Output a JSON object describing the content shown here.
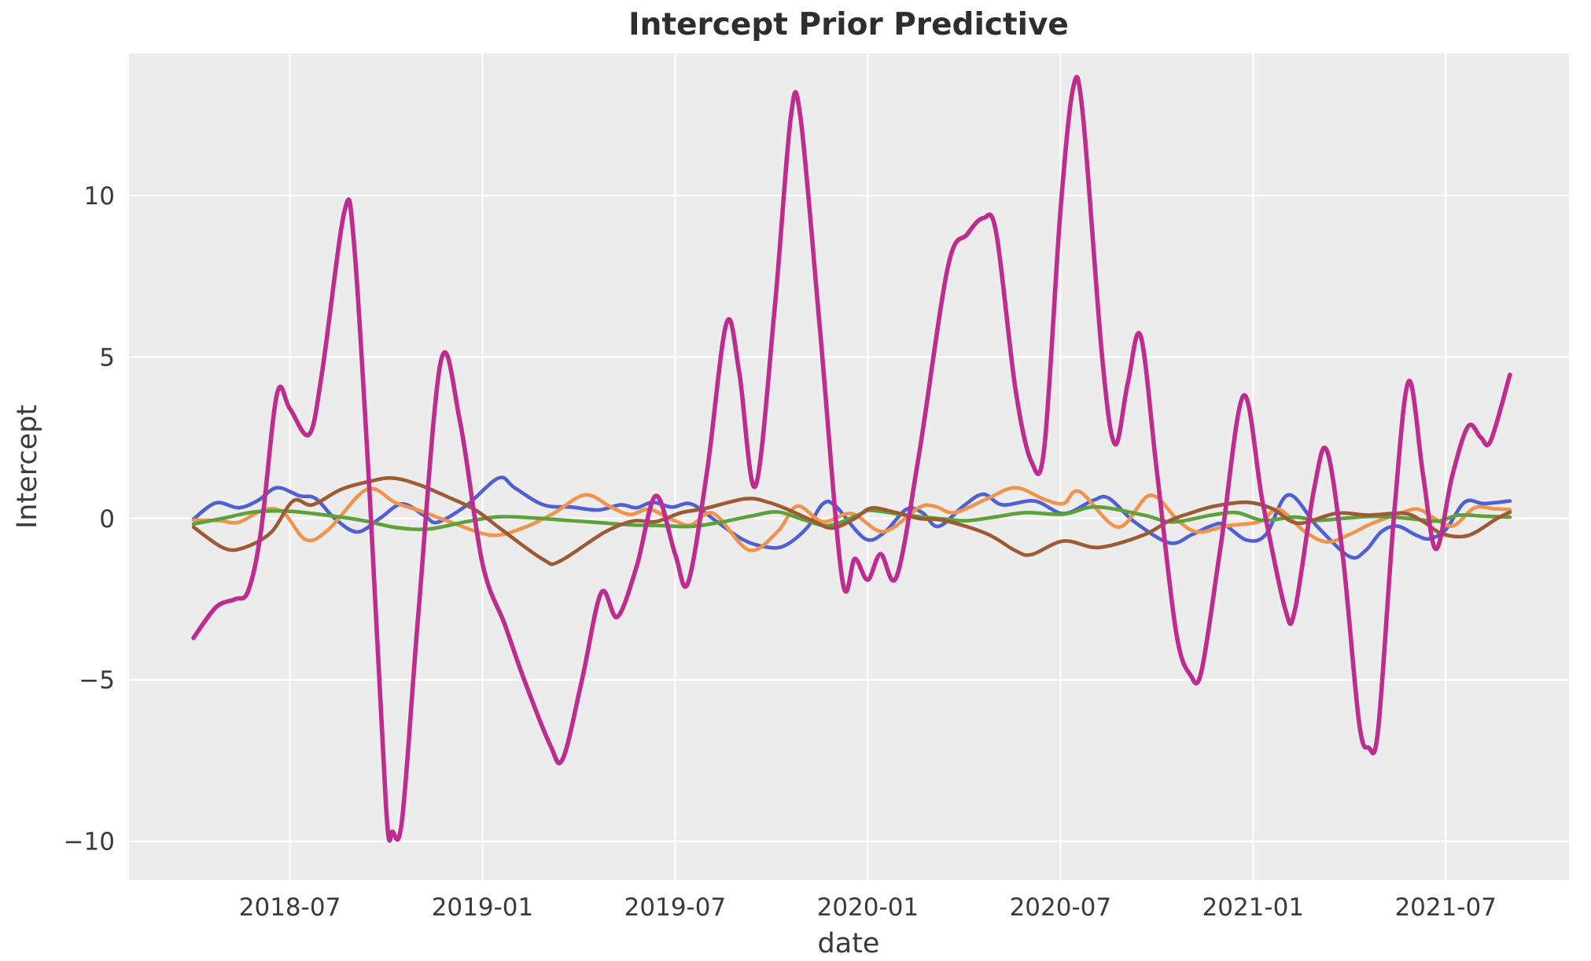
{
  "chart_data": {
    "type": "line",
    "title": "Intercept Prior Predictive",
    "xlabel": "date",
    "ylabel": "Intercept",
    "grid": true,
    "legend": "none",
    "plot_background": "#ececec",
    "gridline_color": "#ffffff",
    "text_color": "#3a3a3a",
    "title_color": "#2e2e2e",
    "x_axis": {
      "start_month": "2018-04",
      "end_month": "2021-09",
      "unit": "month-index from 2018-04",
      "ticks": [
        {
          "t": 3,
          "label": "2018-07"
        },
        {
          "t": 9,
          "label": "2019-01"
        },
        {
          "t": 15,
          "label": "2019-07"
        },
        {
          "t": 21,
          "label": "2020-01"
        },
        {
          "t": 27,
          "label": "2020-07"
        },
        {
          "t": 33,
          "label": "2021-01"
        },
        {
          "t": 39,
          "label": "2021-07"
        }
      ],
      "tlim": [
        -2.01,
        42.84
      ]
    },
    "y_axis": {
      "ticks": [
        {
          "v": -10,
          "label": "−10"
        },
        {
          "v": -5,
          "label": "−5"
        },
        {
          "v": 0,
          "label": "0"
        },
        {
          "v": 5,
          "label": "5"
        },
        {
          "v": 10,
          "label": "10"
        }
      ],
      "vlim": [
        -11.2,
        14.4
      ]
    },
    "series": [
      {
        "name": "prior-draw-blue",
        "color": "#4e60d2",
        "width": 4.6,
        "points": [
          [
            0,
            -0.02
          ],
          [
            0.7,
            0.48
          ],
          [
            1.4,
            0.33
          ],
          [
            2.0,
            0.55
          ],
          [
            2.6,
            0.95
          ],
          [
            3.3,
            0.7
          ],
          [
            3.8,
            0.62
          ],
          [
            4.4,
            0.0
          ],
          [
            5.1,
            -0.42
          ],
          [
            5.8,
            0.0
          ],
          [
            6.5,
            0.45
          ],
          [
            7.2,
            0.08
          ],
          [
            7.6,
            -0.12
          ],
          [
            8.5,
            0.4
          ],
          [
            9.5,
            1.25
          ],
          [
            10.0,
            0.95
          ],
          [
            10.9,
            0.42
          ],
          [
            11.8,
            0.35
          ],
          [
            12.6,
            0.26
          ],
          [
            13.3,
            0.42
          ],
          [
            13.8,
            0.33
          ],
          [
            14.3,
            0.5
          ],
          [
            14.9,
            0.35
          ],
          [
            15.5,
            0.45
          ],
          [
            16.3,
            -0.1
          ],
          [
            17.1,
            -0.65
          ],
          [
            17.8,
            -0.88
          ],
          [
            18.4,
            -0.85
          ],
          [
            19.1,
            -0.3
          ],
          [
            19.6,
            0.45
          ],
          [
            20.0,
            0.38
          ],
          [
            20.9,
            -0.62
          ],
          [
            21.5,
            -0.45
          ],
          [
            22.2,
            0.28
          ],
          [
            22.7,
            0.18
          ],
          [
            23.2,
            -0.25
          ],
          [
            24.0,
            0.4
          ],
          [
            24.6,
            0.75
          ],
          [
            25.2,
            0.42
          ],
          [
            26.2,
            0.54
          ],
          [
            27.1,
            0.15
          ],
          [
            28.0,
            0.55
          ],
          [
            28.5,
            0.63
          ],
          [
            29.3,
            -0.1
          ],
          [
            30.4,
            -0.76
          ],
          [
            31.1,
            -0.5
          ],
          [
            31.7,
            -0.23
          ],
          [
            32.1,
            -0.19
          ],
          [
            32.8,
            -0.67
          ],
          [
            33.4,
            -0.5
          ],
          [
            34.1,
            0.73
          ],
          [
            35.0,
            -0.25
          ],
          [
            36.0,
            -1.18
          ],
          [
            36.5,
            -1.0
          ],
          [
            37.0,
            -0.41
          ],
          [
            37.5,
            -0.24
          ],
          [
            38.1,
            -0.53
          ],
          [
            38.5,
            -0.63
          ],
          [
            39.0,
            -0.35
          ],
          [
            39.6,
            0.51
          ],
          [
            40.2,
            0.46
          ],
          [
            41,
            0.54
          ]
        ]
      },
      {
        "name": "prior-draw-orange",
        "color": "#f0944d",
        "width": 4.6,
        "points": [
          [
            0,
            -0.05
          ],
          [
            0.8,
            -0.07
          ],
          [
            1.4,
            -0.12
          ],
          [
            2.2,
            0.27
          ],
          [
            2.8,
            0.18
          ],
          [
            3.5,
            -0.66
          ],
          [
            4.2,
            -0.35
          ],
          [
            5.4,
            0.9
          ],
          [
            6.3,
            0.48
          ],
          [
            7.1,
            0.22
          ],
          [
            8.1,
            -0.15
          ],
          [
            9.3,
            -0.52
          ],
          [
            10.3,
            -0.28
          ],
          [
            11.2,
            0.15
          ],
          [
            12.2,
            0.73
          ],
          [
            13.0,
            0.35
          ],
          [
            13.6,
            0.12
          ],
          [
            14.2,
            0.28
          ],
          [
            15.0,
            -0.08
          ],
          [
            15.5,
            -0.2
          ],
          [
            16.2,
            0.15
          ],
          [
            17.3,
            -0.98
          ],
          [
            18.2,
            -0.4
          ],
          [
            18.8,
            0.38
          ],
          [
            19.6,
            -0.1
          ],
          [
            20.5,
            0.15
          ],
          [
            21.5,
            -0.41
          ],
          [
            22.6,
            0.34
          ],
          [
            23.1,
            0.37
          ],
          [
            23.7,
            0.18
          ],
          [
            24.7,
            0.6
          ],
          [
            25.6,
            0.95
          ],
          [
            26.5,
            0.59
          ],
          [
            27.1,
            0.46
          ],
          [
            27.6,
            0.83
          ],
          [
            28.8,
            -0.27
          ],
          [
            29.8,
            0.72
          ],
          [
            30.7,
            -0.1
          ],
          [
            31.3,
            -0.42
          ],
          [
            32.2,
            -0.23
          ],
          [
            33.2,
            -0.1
          ],
          [
            33.8,
            0.28
          ],
          [
            34.6,
            -0.4
          ],
          [
            35.3,
            -0.73
          ],
          [
            36.0,
            -0.5
          ],
          [
            36.7,
            -0.16
          ],
          [
            37.7,
            0.2
          ],
          [
            38.2,
            0.27
          ],
          [
            38.9,
            -0.15
          ],
          [
            39.3,
            -0.2
          ],
          [
            39.9,
            0.33
          ],
          [
            40.5,
            0.3
          ],
          [
            41,
            0.27
          ]
        ]
      },
      {
        "name": "prior-draw-green",
        "color": "#5da13a",
        "width": 4.6,
        "points": [
          [
            0,
            -0.17
          ],
          [
            0.9,
            0.0
          ],
          [
            1.9,
            0.2
          ],
          [
            3.0,
            0.22
          ],
          [
            4.3,
            0.08
          ],
          [
            5.3,
            -0.07
          ],
          [
            6.3,
            -0.28
          ],
          [
            7.3,
            -0.33
          ],
          [
            8.5,
            -0.1
          ],
          [
            9.5,
            0.05
          ],
          [
            10.5,
            0.02
          ],
          [
            11.5,
            -0.05
          ],
          [
            12.5,
            -0.12
          ],
          [
            13.6,
            -0.2
          ],
          [
            14.5,
            -0.22
          ],
          [
            15.5,
            -0.25
          ],
          [
            16.5,
            -0.1
          ],
          [
            17.4,
            0.08
          ],
          [
            18.2,
            0.2
          ],
          [
            19.0,
            -0.04
          ],
          [
            19.8,
            -0.22
          ],
          [
            20.8,
            0.15
          ],
          [
            21.1,
            0.25
          ],
          [
            22.2,
            0.1
          ],
          [
            23.4,
            -0.02
          ],
          [
            24.1,
            -0.07
          ],
          [
            25.0,
            0.05
          ],
          [
            25.9,
            0.18
          ],
          [
            27.1,
            0.13
          ],
          [
            28.1,
            0.36
          ],
          [
            29.6,
            0.1
          ],
          [
            30.5,
            -0.11
          ],
          [
            31.7,
            0.1
          ],
          [
            32.5,
            0.18
          ],
          [
            33.3,
            -0.06
          ],
          [
            34.3,
            0.04
          ],
          [
            35.0,
            -0.06
          ],
          [
            35.8,
            0.0
          ],
          [
            36.6,
            0.06
          ],
          [
            37.4,
            0.04
          ],
          [
            38.2,
            -0.04
          ],
          [
            38.8,
            -0.08
          ],
          [
            39.4,
            0.1
          ],
          [
            40.2,
            0.07
          ],
          [
            41,
            0.04
          ]
        ]
      },
      {
        "name": "prior-draw-brown",
        "color": "#9c5b33",
        "width": 4.6,
        "points": [
          [
            0,
            -0.27
          ],
          [
            0.9,
            -0.9
          ],
          [
            1.5,
            -0.93
          ],
          [
            2.4,
            -0.45
          ],
          [
            3.1,
            0.54
          ],
          [
            3.7,
            0.42
          ],
          [
            4.6,
            0.9
          ],
          [
            5.5,
            1.15
          ],
          [
            6.2,
            1.25
          ],
          [
            7.0,
            1.05
          ],
          [
            8.0,
            0.63
          ],
          [
            8.8,
            0.25
          ],
          [
            9.6,
            -0.35
          ],
          [
            10.9,
            -1.28
          ],
          [
            11.4,
            -1.33
          ],
          [
            12.8,
            -0.43
          ],
          [
            13.7,
            -0.08
          ],
          [
            14.4,
            -0.1
          ],
          [
            15.2,
            0.18
          ],
          [
            15.9,
            0.3
          ],
          [
            17.2,
            0.61
          ],
          [
            17.9,
            0.5
          ],
          [
            18.5,
            0.28
          ],
          [
            19.3,
            -0.08
          ],
          [
            19.9,
            -0.3
          ],
          [
            20.6,
            0.0
          ],
          [
            21.1,
            0.32
          ],
          [
            21.8,
            0.2
          ],
          [
            22.6,
            0.0
          ],
          [
            23.4,
            -0.07
          ],
          [
            24.7,
            -0.47
          ],
          [
            25.6,
            -1.0
          ],
          [
            26.1,
            -1.12
          ],
          [
            27.1,
            -0.7
          ],
          [
            28.2,
            -0.9
          ],
          [
            29.6,
            -0.51
          ],
          [
            30.4,
            -0.07
          ],
          [
            31.1,
            0.18
          ],
          [
            31.8,
            0.38
          ],
          [
            32.8,
            0.5
          ],
          [
            33.6,
            0.3
          ],
          [
            34.4,
            -0.15
          ],
          [
            35.6,
            0.16
          ],
          [
            36.6,
            0.1
          ],
          [
            37.7,
            0.16
          ],
          [
            38.3,
            -0.1
          ],
          [
            38.9,
            -0.48
          ],
          [
            39.7,
            -0.53
          ],
          [
            40.6,
            0.0
          ],
          [
            41,
            0.19
          ]
        ]
      },
      {
        "name": "prior-draw-magenta",
        "color": "#bf2c90",
        "width": 5.6,
        "points": [
          [
            0,
            -3.7
          ],
          [
            0.7,
            -2.75
          ],
          [
            1.3,
            -2.5
          ],
          [
            1.7,
            -2.25
          ],
          [
            2.1,
            -0.4
          ],
          [
            2.6,
            3.85
          ],
          [
            3.0,
            3.4
          ],
          [
            3.6,
            2.6
          ],
          [
            4.0,
            4.5
          ],
          [
            4.7,
            9.5
          ],
          [
            5.0,
            8.5
          ],
          [
            5.5,
            0.5
          ],
          [
            6.0,
            -9.0
          ],
          [
            6.2,
            -9.7
          ],
          [
            6.5,
            -9.3
          ],
          [
            7.0,
            -3.0
          ],
          [
            7.7,
            4.85
          ],
          [
            8.3,
            3.0
          ],
          [
            9.0,
            -1.4
          ],
          [
            9.7,
            -3.3
          ],
          [
            10.3,
            -5.0
          ],
          [
            11.1,
            -7.0
          ],
          [
            11.5,
            -7.45
          ],
          [
            12.1,
            -5.0
          ],
          [
            12.7,
            -2.3
          ],
          [
            13.2,
            -3.05
          ],
          [
            13.8,
            -1.5
          ],
          [
            14.4,
            0.7
          ],
          [
            15.0,
            -1.1
          ],
          [
            15.4,
            -2.0
          ],
          [
            16.0,
            1.5
          ],
          [
            16.6,
            6.05
          ],
          [
            17.0,
            4.5
          ],
          [
            17.5,
            1.0
          ],
          [
            18.1,
            6.5
          ],
          [
            18.6,
            12.4
          ],
          [
            18.9,
            12.45
          ],
          [
            19.5,
            6.0
          ],
          [
            20.2,
            -1.85
          ],
          [
            20.6,
            -1.25
          ],
          [
            21.0,
            -1.9
          ],
          [
            21.4,
            -1.1
          ],
          [
            21.9,
            -1.8
          ],
          [
            22.6,
            2.0
          ],
          [
            23.5,
            7.8
          ],
          [
            24.1,
            8.8
          ],
          [
            24.6,
            9.3
          ],
          [
            25.0,
            8.85
          ],
          [
            25.6,
            4.0
          ],
          [
            26.1,
            1.75
          ],
          [
            26.5,
            2.2
          ],
          [
            27.0,
            9.5
          ],
          [
            27.4,
            13.35
          ],
          [
            27.7,
            12.5
          ],
          [
            28.3,
            5.0
          ],
          [
            28.7,
            2.3
          ],
          [
            29.1,
            4.2
          ],
          [
            29.5,
            5.65
          ],
          [
            30.0,
            1.5
          ],
          [
            30.6,
            -3.5
          ],
          [
            31.05,
            -4.85
          ],
          [
            31.4,
            -4.7
          ],
          [
            32.0,
            -0.8
          ],
          [
            32.7,
            3.8
          ],
          [
            33.3,
            0.5
          ],
          [
            34.0,
            -2.8
          ],
          [
            34.3,
            -2.85
          ],
          [
            34.9,
            0.9
          ],
          [
            35.3,
            2.1
          ],
          [
            35.8,
            -1.2
          ],
          [
            36.3,
            -6.3
          ],
          [
            36.6,
            -7.1
          ],
          [
            36.9,
            -6.5
          ],
          [
            37.4,
            0.2
          ],
          [
            37.85,
            4.25
          ],
          [
            38.3,
            1.3
          ],
          [
            38.7,
            -0.95
          ],
          [
            39.2,
            1.3
          ],
          [
            39.7,
            2.85
          ],
          [
            40.1,
            2.5
          ],
          [
            40.4,
            2.4
          ],
          [
            41,
            4.45
          ]
        ]
      }
    ]
  }
}
